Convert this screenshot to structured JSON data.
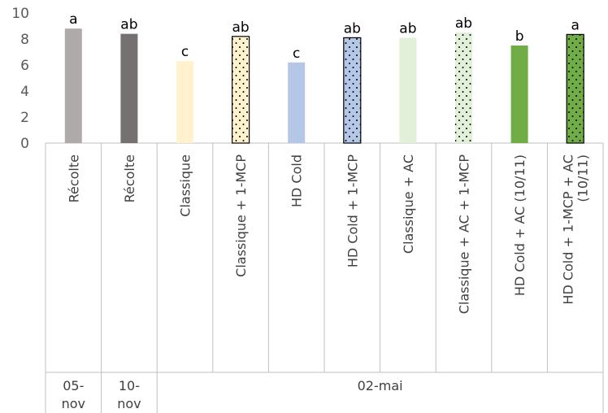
{
  "chart_data": {
    "type": "bar",
    "title": "",
    "xlabel": "",
    "ylabel": "",
    "ylim": [
      0,
      10
    ],
    "yticks": [
      0,
      2,
      4,
      6,
      8,
      10
    ],
    "grid": false,
    "legend": "none",
    "categories": [
      "Récolte",
      "Récolte",
      "Classique",
      "Classique + 1-MCP",
      "HD Cold",
      "HD Cold + 1-MCP",
      "Classique + AC",
      "Classique + AC + 1-MCP",
      "HD Cold + AC (10/11)",
      "HD Cold + 1-MCP + AC (10/11)"
    ],
    "values": [
      8.8,
      8.4,
      6.3,
      8.2,
      6.2,
      8.1,
      8.1,
      8.5,
      7.5,
      8.35
    ],
    "significance_letters": [
      "a",
      "ab",
      "c",
      "ab",
      "c",
      "ab",
      "ab",
      "ab",
      "b",
      "a"
    ],
    "bar_colors": [
      "#aeaaaa",
      "#767171",
      "#fff2cc",
      "#fff2cc",
      "#b4c7e7",
      "#b4c7e7",
      "#e2f0d9",
      "#e2f0d9",
      "#70ad47",
      "#70ad47"
    ],
    "bar_dotted": [
      false,
      false,
      false,
      true,
      false,
      true,
      false,
      true,
      false,
      true
    ],
    "bar_outlined": [
      false,
      false,
      false,
      true,
      false,
      true,
      false,
      false,
      false,
      true
    ],
    "groups": [
      {
        "label": "05-\nnov",
        "span": 1
      },
      {
        "label": "10-\nnov",
        "span": 1
      },
      {
        "label": "02-mai",
        "span": 8
      }
    ]
  }
}
